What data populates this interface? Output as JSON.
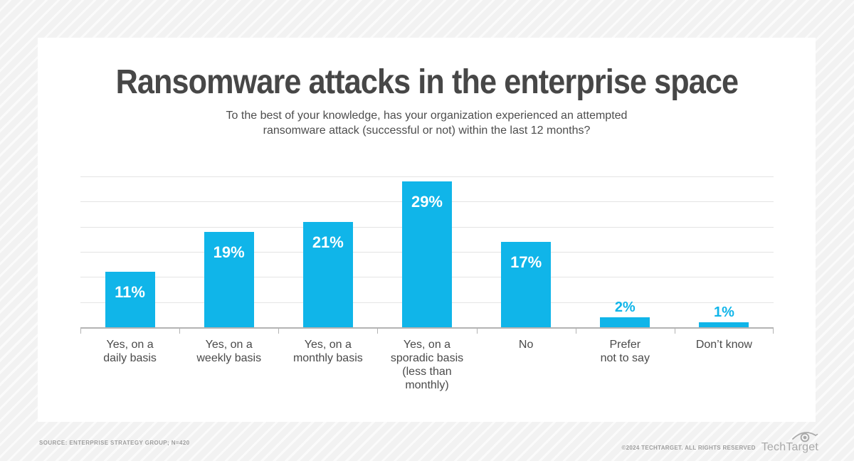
{
  "background": {
    "stripe_base": "#f2f2f2",
    "stripe_line": "#fbfbfb"
  },
  "card": {
    "bg": "#ffffff"
  },
  "chart_data": {
    "type": "bar",
    "title": "Ransomware attacks in the enterprise space",
    "subtitle_lines": [
      "To the best of your knowledge, has your organization experienced an attempted",
      "ransomware attack (successful or not) within the last 12 months?"
    ],
    "categories": [
      {
        "label_lines": [
          "Yes, on a",
          "daily basis"
        ],
        "value": 11,
        "value_label": "11%",
        "label_placement": "inside"
      },
      {
        "label_lines": [
          "Yes, on a",
          "weekly basis"
        ],
        "value": 19,
        "value_label": "19%",
        "label_placement": "inside"
      },
      {
        "label_lines": [
          "Yes, on a",
          "monthly basis"
        ],
        "value": 21,
        "value_label": "21%",
        "label_placement": "inside"
      },
      {
        "label_lines": [
          "Yes, on a",
          "sporadic basis",
          "(less than",
          "monthly)"
        ],
        "value": 29,
        "value_label": "29%",
        "label_placement": "inside"
      },
      {
        "label_lines": [
          "No"
        ],
        "value": 17,
        "value_label": "17%",
        "label_placement": "inside"
      },
      {
        "label_lines": [
          "Prefer",
          "not to say"
        ],
        "value": 2,
        "value_label": "2%",
        "label_placement": "above"
      },
      {
        "label_lines": [
          "Don’t know"
        ],
        "value": 1,
        "value_label": "1%",
        "label_placement": "above"
      }
    ],
    "ylim": [
      0,
      30
    ],
    "gridline_step": 5,
    "grid": true,
    "legend": "none",
    "xlabel": "",
    "ylabel": "",
    "bar_color": "#10b5e9",
    "inside_label_color": "#ffffff",
    "above_label_color": "#10b5e9",
    "gridline_color": "#e4e4e4",
    "axis_color": "#b3b3b3"
  },
  "footer": {
    "source": "SOURCE: ENTERPRISE STRATEGY GROUP; N=420",
    "copyright": "©2024 TECHTARGET. ALL RIGHTS RESERVED",
    "logo_text": "TechTarget",
    "logo_icon": "eye-icon"
  }
}
